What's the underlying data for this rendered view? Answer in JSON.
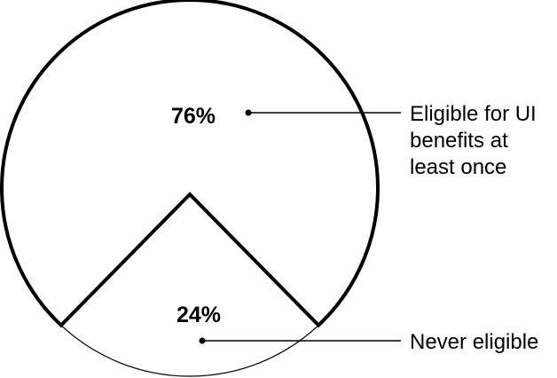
{
  "chart_data": {
    "type": "pie",
    "title": "",
    "slices": [
      {
        "value": 76,
        "label": "76%",
        "name_lines": [
          "Eligible for UI",
          "benefits at",
          "least once"
        ]
      },
      {
        "value": 24,
        "label": "24%",
        "name_lines": [
          "Never eligible"
        ]
      }
    ],
    "legend": "callouts-right",
    "colors": {
      "fill": "#ffffff",
      "stroke": "#000000"
    }
  }
}
